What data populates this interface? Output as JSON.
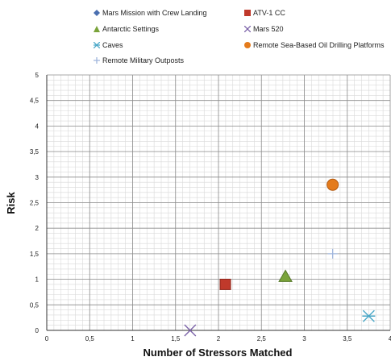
{
  "chart_data": {
    "type": "scatter",
    "xlabel": "Number of Stressors Matched",
    "ylabel": "Risk",
    "xlim": [
      0,
      4
    ],
    "ylim": [
      0,
      5
    ],
    "x_ticks": [
      "0",
      "0,5",
      "1",
      "1,5",
      "2",
      "2,5",
      "3",
      "3,5",
      "4"
    ],
    "y_ticks": [
      "0",
      "0,5",
      "1",
      "1,5",
      "2",
      "2,5",
      "3",
      "3,5",
      "4",
      "4,5",
      "5"
    ],
    "grid": true,
    "legend_position": "top",
    "series": [
      {
        "name": "Mars Mission with Crew Landing",
        "marker": "diamond",
        "color": "#4a6fb0",
        "points": []
      },
      {
        "name": "ATV-1 CC",
        "marker": "square",
        "color": "#c0392b",
        "points": [
          {
            "x": 2.08,
            "y": 0.9
          }
        ]
      },
      {
        "name": "Antarctic Settings",
        "marker": "triangle",
        "color": "#7aa33a",
        "points": [
          {
            "x": 2.78,
            "y": 1.05
          }
        ]
      },
      {
        "name": "Mars 520",
        "marker": "x",
        "color": "#7b62a8",
        "points": [
          {
            "x": 1.67,
            "y": 0.0
          }
        ]
      },
      {
        "name": "Caves",
        "marker": "asterisk",
        "color": "#4aa8c8",
        "points": [
          {
            "x": 3.75,
            "y": 0.28
          }
        ]
      },
      {
        "name": "Remote Sea-Based Oil Drilling Platforms",
        "marker": "circle",
        "color": "#e47b1c",
        "points": [
          {
            "x": 3.33,
            "y": 2.85
          }
        ]
      },
      {
        "name": "Remote Military Outposts",
        "marker": "plus",
        "color": "#9fb5dc",
        "points": [
          {
            "x": 3.33,
            "y": 1.5
          }
        ]
      }
    ]
  }
}
